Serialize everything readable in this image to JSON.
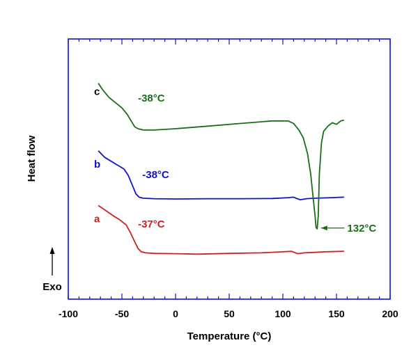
{
  "chart_data": {
    "type": "line",
    "title": "",
    "xlabel": "Temperature (°C)",
    "ylabel": "Heat flow",
    "xlim": [
      -100,
      200
    ],
    "ylim": [
      0,
      10
    ],
    "xticks": [
      -100,
      -50,
      0,
      50,
      100,
      150,
      200
    ],
    "exo_label": "Exo",
    "series": [
      {
        "name": "a",
        "color": "#cc2222",
        "x": [
          -72,
          -65,
          -58,
          -52,
          -46,
          -42,
          -38,
          -35,
          -32,
          -28,
          -20,
          0,
          20,
          50,
          80,
          100,
          108,
          114,
          120,
          130,
          140,
          157
        ],
        "y": [
          3.6,
          3.4,
          3.2,
          3.05,
          2.85,
          2.55,
          2.2,
          1.95,
          1.82,
          1.78,
          1.76,
          1.75,
          1.73,
          1.76,
          1.78,
          1.82,
          1.84,
          1.75,
          1.78,
          1.8,
          1.82,
          1.84
        ]
      },
      {
        "name": "b",
        "color": "#1111cc",
        "x": [
          -72,
          -66,
          -60,
          -54,
          -48,
          -44,
          -40,
          -37,
          -34,
          -30,
          -20,
          0,
          30,
          60,
          90,
          105,
          110,
          116,
          122,
          130,
          145,
          157
        ],
        "y": [
          5.7,
          5.45,
          5.3,
          5.15,
          5.0,
          4.75,
          4.35,
          4.05,
          3.92,
          3.88,
          3.86,
          3.85,
          3.86,
          3.86,
          3.87,
          3.9,
          3.92,
          3.82,
          3.86,
          3.88,
          3.9,
          3.92
        ]
      },
      {
        "name": "c",
        "color": "#1a6e1a",
        "x": [
          -72,
          -68,
          -62,
          -56,
          -50,
          -45,
          -41,
          -38,
          -35,
          -30,
          -20,
          0,
          30,
          60,
          90,
          105,
          110,
          115,
          119,
          123,
          126,
          128,
          130,
          131,
          132,
          133,
          134,
          136,
          138,
          142,
          146,
          150,
          154,
          157
        ],
        "y": [
          8.3,
          8.05,
          7.75,
          7.55,
          7.35,
          7.1,
          6.82,
          6.62,
          6.55,
          6.5,
          6.5,
          6.55,
          6.65,
          6.75,
          6.85,
          6.85,
          6.75,
          6.5,
          6.2,
          5.6,
          4.8,
          4.0,
          3.2,
          2.75,
          2.7,
          3.2,
          4.8,
          6.0,
          6.45,
          6.65,
          6.78,
          6.72,
          6.85,
          6.88
        ]
      }
    ],
    "annotations": [
      {
        "series": "a",
        "label": "a",
        "x": -76,
        "y": 2.95,
        "color": "#cc2222"
      },
      {
        "series": "a",
        "label": "-37°C",
        "x": -35,
        "y": 2.75,
        "color": "#cc2222"
      },
      {
        "series": "b",
        "label": "b",
        "x": -76,
        "y": 5.05,
        "color": "#1111cc"
      },
      {
        "series": "b",
        "label": "-38°C",
        "x": -31,
        "y": 4.65,
        "color": "#1111cc"
      },
      {
        "series": "c",
        "label": "c",
        "x": -76,
        "y": 7.85,
        "color": "#000000"
      },
      {
        "series": "c",
        "label": "-38°C",
        "x": -35,
        "y": 7.6,
        "color": "#1a6e1a"
      },
      {
        "series": "c",
        "label": "132°C",
        "x": 160,
        "y": 2.6,
        "color": "#1a6e1a",
        "arrow_to": [
          133,
          2.7
        ]
      }
    ]
  }
}
